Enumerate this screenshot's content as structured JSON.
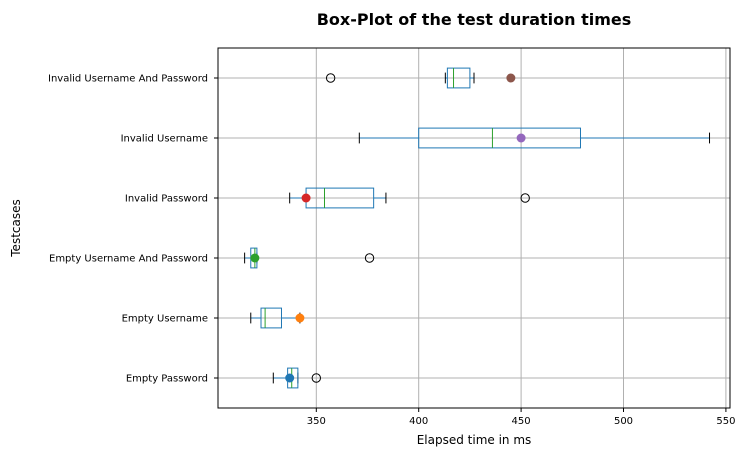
{
  "chart_data": {
    "type": "boxplot",
    "orientation": "horizontal",
    "title": "Box-Plot of the test duration times",
    "xlabel": "Elapsed time in ms",
    "ylabel": "Testcases",
    "xlim": [
      302,
      552
    ],
    "xticks": [
      350,
      400,
      450,
      500,
      550
    ],
    "grid": true,
    "box_color": "#1f77b4",
    "median_color": "#2ca02c",
    "categories": [
      "Empty Password",
      "Empty Username",
      "Empty Username And Password",
      "Invalid Password",
      "Invalid Username",
      "Invalid Username And Password"
    ],
    "boxes": [
      {
        "whisker_low": 329,
        "q1": 336,
        "median": 338,
        "q3": 341,
        "whisker_high": 341,
        "outliers": [
          350
        ],
        "mean": 337,
        "mean_color": "#1f77b4"
      },
      {
        "whisker_low": 318,
        "q1": 323,
        "median": 325,
        "q3": 333,
        "whisker_high": 342,
        "outliers": [],
        "mean": 342,
        "mean_color": "#ff7f0e"
      },
      {
        "whisker_low": 315,
        "q1": 318,
        "median": 320,
        "q3": 321,
        "whisker_high": 321,
        "outliers": [
          376
        ],
        "mean": 320,
        "mean_color": "#2ca02c"
      },
      {
        "whisker_low": 337,
        "q1": 345,
        "median": 354,
        "q3": 378,
        "whisker_high": 384,
        "outliers": [
          452
        ],
        "mean": 345,
        "mean_color": "#d62728"
      },
      {
        "whisker_low": 371,
        "q1": 400,
        "median": 436,
        "q3": 479,
        "whisker_high": 542,
        "outliers": [],
        "mean": 450,
        "mean_color": "#9467bd"
      },
      {
        "whisker_low": 413,
        "q1": 414,
        "median": 417,
        "q3": 425,
        "whisker_high": 427,
        "outliers": [
          357
        ],
        "mean": 445,
        "mean_color": "#8c564b"
      }
    ]
  }
}
